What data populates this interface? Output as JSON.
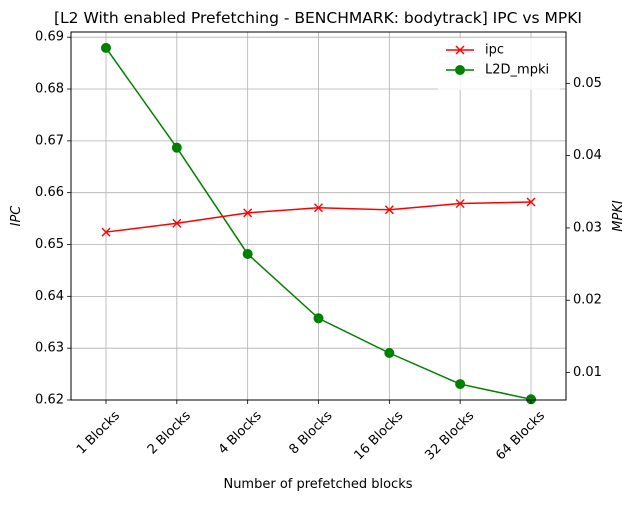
{
  "chart_data": {
    "type": "line",
    "title": "[L2 With enabled Prefetching - BENCHMARK: bodytrack]  IPC vs MPKI",
    "xlabel": "Number of prefetched blocks",
    "ylabel_left": "IPC",
    "ylabel_right": "MPKI",
    "categories": [
      "1 Blocks",
      "2 Blocks",
      "4 Blocks",
      "8 Blocks",
      "16 Blocks",
      "32 Blocks",
      "64 Blocks"
    ],
    "ylim_left": [
      0.62,
      0.691
    ],
    "yticks_left": [
      "0.62",
      "0.63",
      "0.64",
      "0.65",
      "0.66",
      "0.67",
      "0.68",
      "0.69"
    ],
    "ylim_right": [
      0.0062,
      0.0571
    ],
    "yticks_right": [
      "0.01",
      "0.02",
      "0.03",
      "0.04",
      "0.05"
    ],
    "grid": true,
    "legend_position": "top-right",
    "series": [
      {
        "name": "ipc",
        "axis": "left",
        "color": "#ff0000",
        "marker": "x",
        "values": [
          0.6524,
          0.6541,
          0.6561,
          0.6571,
          0.6567,
          0.6579,
          0.6582
        ]
      },
      {
        "name": "L2D_mpki",
        "axis": "right",
        "color": "#008000",
        "marker": "circle",
        "values": [
          0.0549,
          0.0411,
          0.0264,
          0.0175,
          0.0127,
          0.0084,
          0.0063
        ]
      }
    ]
  }
}
